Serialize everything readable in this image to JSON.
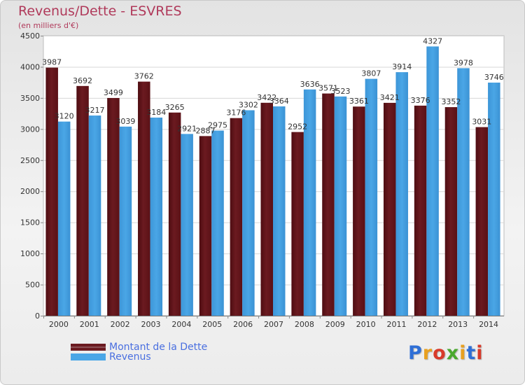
{
  "title": "Revenus/Dette - ESVRES",
  "subtitle": "(en milliers d'€)",
  "colors": {
    "debt": "#6b1a20",
    "revenue": "#4aa6e6",
    "title": "#b03a5b",
    "legend_text": "#4a6fe0"
  },
  "legend": {
    "debt": "Montant de la Dette",
    "revenue": "Revenus"
  },
  "logo": {
    "text": "Proxiti",
    "letter_colors": [
      "#2f6fd6",
      "#e8a020",
      "#d83a2a",
      "#4aa82e",
      "#e8a020",
      "#2f6fd6",
      "#d83a2a"
    ]
  },
  "chart_data": {
    "type": "bar",
    "categories": [
      "2000",
      "2001",
      "2002",
      "2003",
      "2004",
      "2005",
      "2006",
      "2007",
      "2008",
      "2009",
      "2010",
      "2011",
      "2012",
      "2013",
      "2014"
    ],
    "series": [
      {
        "name": "Montant de la Dette",
        "values": [
          3987,
          3692,
          3499,
          3762,
          3265,
          2887,
          3176,
          3422,
          2952,
          3571,
          3361,
          3421,
          3376,
          3352,
          3031
        ]
      },
      {
        "name": "Revenus",
        "values": [
          3120,
          3217,
          3039,
          3184,
          2921,
          2975,
          3302,
          3364,
          3636,
          3523,
          3807,
          3914,
          4327,
          3978,
          3746
        ]
      }
    ],
    "ylim": [
      0,
      4500
    ],
    "yticks": [
      0,
      500,
      1000,
      1500,
      2000,
      2500,
      3000,
      3500,
      4000,
      4500
    ],
    "grid": true,
    "legend_position": "bottom-left"
  }
}
